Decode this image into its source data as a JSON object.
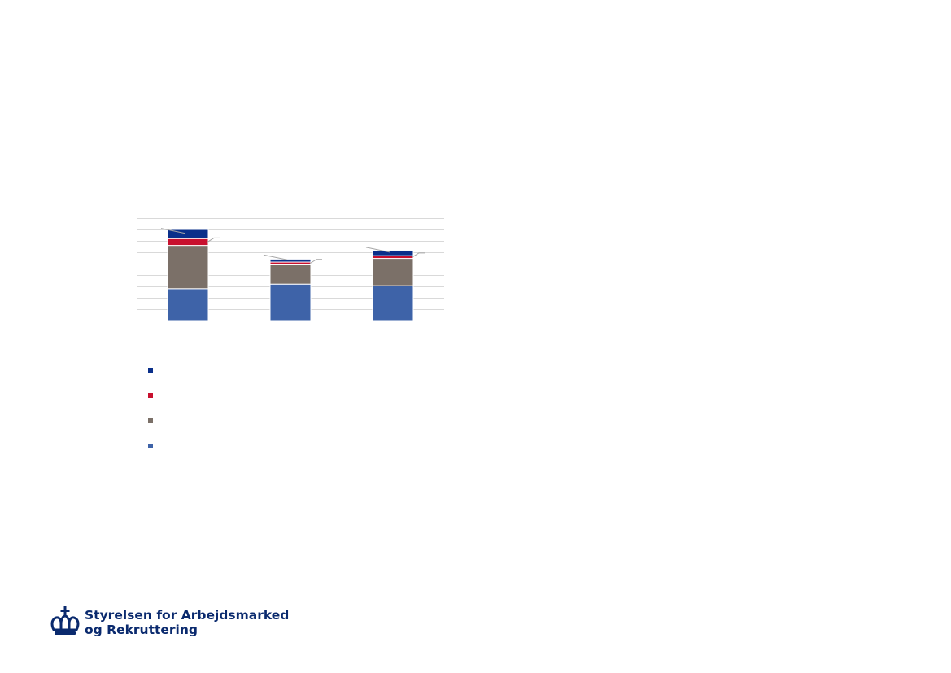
{
  "chart_data": {
    "type": "bar",
    "stacked": true,
    "categories": [
      "",
      "",
      ""
    ],
    "series": [
      {
        "values": [
          14,
          16,
          15.3
        ],
        "color": "#3e63a8"
      },
      {
        "values": [
          19,
          8.5,
          12
        ],
        "color": "#7b7068"
      },
      {
        "values": [
          3,
          1.2,
          1.2
        ],
        "color": "#c8102e"
      },
      {
        "values": [
          4,
          1.3,
          2.4
        ],
        "color": "#0a2f8a"
      }
    ],
    "ylim": [
      0,
      45
    ],
    "grid": true,
    "legend": "bottom-left"
  },
  "brand": {
    "line1": "Styrelsen for Arbejdsmarked",
    "line2": "og Rekruttering",
    "color": "#0a2a6e"
  }
}
